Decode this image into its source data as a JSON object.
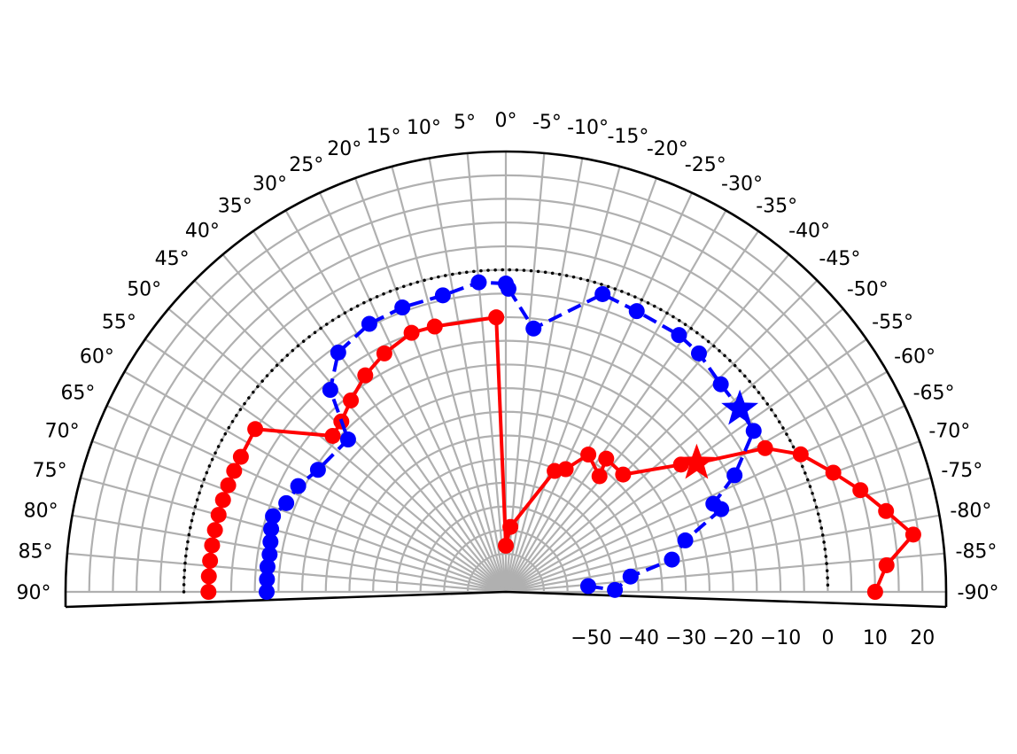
{
  "chart_data": {
    "type": "line",
    "subtype": "polar-half",
    "angle_ticks": [
      "90°",
      "85°",
      "80°",
      "75°",
      "70°",
      "65°",
      "60°",
      "55°",
      "50°",
      "45°",
      "40°",
      "35°",
      "30°",
      "25°",
      "20°",
      "15°",
      "10°",
      "5°",
      "0°",
      "-5°",
      "-10°",
      "-15°",
      "-20°",
      "-25°",
      "-30°",
      "-35°",
      "-40°",
      "-45°",
      "-50°",
      "-55°",
      "-60°",
      "-65°",
      "-70°",
      "-75°",
      "-80°",
      "-85°",
      "-90°"
    ],
    "angle_range": [
      -90,
      90
    ],
    "radial_ticks": [
      "−50",
      "−40",
      "−30",
      "−20",
      "−10",
      "0",
      "10",
      "20"
    ],
    "radial_range": [
      -60,
      25
    ],
    "reference_ring": 0,
    "grid": true,
    "series": [
      {
        "color": "#ff0000",
        "linestyle": "solid",
        "marker": "circle",
        "peak_marker": "star",
        "peak_index": 28,
        "points": [
          {
            "angle": 90,
            "r": -5.2
          },
          {
            "angle": 87,
            "r": -5.2
          },
          {
            "angle": 84,
            "r": -5.2
          },
          {
            "angle": 81,
            "r": -5.2
          },
          {
            "angle": 78,
            "r": -5.2
          },
          {
            "angle": 75,
            "r": -5.2
          },
          {
            "angle": 72,
            "r": -5.2
          },
          {
            "angle": 69,
            "r": -5.2
          },
          {
            "angle": 66,
            "r": -5.2
          },
          {
            "angle": 63,
            "r": -5.2
          },
          {
            "angle": 57,
            "r": -4.9
          },
          {
            "angle": 48,
            "r": -18.8
          },
          {
            "angle": 44,
            "r": -18.0
          },
          {
            "angle": 39,
            "r": -16.0
          },
          {
            "angle": 33,
            "r": -13.5
          },
          {
            "angle": 27,
            "r": -11.5
          },
          {
            "angle": 20,
            "r": -9.8
          },
          {
            "angle": 15,
            "r": -10.0
          },
          {
            "angle": 2,
            "r": -10.0
          },
          {
            "angle": 0,
            "r": -58.3
          },
          {
            "angle": -4,
            "r": -54.3
          },
          {
            "angle": -22,
            "r": -40.5
          },
          {
            "angle": -26,
            "r": -39.2
          },
          {
            "angle": -31,
            "r": -34.2
          },
          {
            "angle": -39,
            "r": -36.6
          },
          {
            "angle": -37,
            "r": -32.8
          },
          {
            "angle": -45,
            "r": -33.0
          },
          {
            "angle": -54,
            "r": -22.3
          },
          {
            "angle": -56,
            "r": -19.4
          },
          {
            "angle": -61,
            "r": -5.4
          },
          {
            "angle": -65,
            "r": 0.7
          },
          {
            "angle": -70,
            "r": 5.6
          },
          {
            "angle": -74,
            "r": 9.9
          },
          {
            "angle": -78,
            "r": 14.1
          },
          {
            "angle": -82,
            "r": 18.9
          },
          {
            "angle": -86,
            "r": 12.6
          },
          {
            "angle": -90,
            "r": 10.0
          }
        ]
      },
      {
        "color": "#0000ff",
        "linestyle": "dashed",
        "marker": "circle",
        "peak_marker": "star",
        "peak_index": 25,
        "points": [
          {
            "angle": 90,
            "r": -17.5
          },
          {
            "angle": 87,
            "r": -17.5
          },
          {
            "angle": 84,
            "r": -17.4
          },
          {
            "angle": 81,
            "r": -17.5
          },
          {
            "angle": 78,
            "r": -17.2
          },
          {
            "angle": 75,
            "r": -16.7
          },
          {
            "angle": 72,
            "r": -16.3
          },
          {
            "angle": 68,
            "r": -18.0
          },
          {
            "angle": 63,
            "r": -18.8
          },
          {
            "angle": 57,
            "r": -20.7
          },
          {
            "angle": 46,
            "r": -21.7
          },
          {
            "angle": 41,
            "r": -11.5
          },
          {
            "angle": 35,
            "r": -6.3
          },
          {
            "angle": 27,
            "r": -4.5
          },
          {
            "angle": 20,
            "r": -4.1
          },
          {
            "angle": 12,
            "r": -4.0
          },
          {
            "angle": 5,
            "r": -2.4
          },
          {
            "angle": 0,
            "r": -2.9
          },
          {
            "angle": -0.5,
            "r": -4.0
          },
          {
            "angle": -6,
            "r": -12.1
          },
          {
            "angle": -18,
            "r": -1.9
          },
          {
            "angle": -25,
            "r": -2.6
          },
          {
            "angle": -34,
            "r": -2.6
          },
          {
            "angle": -39,
            "r": -3.2
          },
          {
            "angle": -46,
            "r": -4.9
          },
          {
            "angle": -52,
            "r": -5.3
          },
          {
            "angle": -57,
            "r": -5.6
          },
          {
            "angle": -63,
            "r": -13.8
          },
          {
            "angle": -67,
            "r": -20.4
          },
          {
            "angle": -69,
            "r": -19.3
          },
          {
            "angle": -74,
            "r": -28.6
          },
          {
            "angle": -79,
            "r": -32.3
          },
          {
            "angle": -83,
            "r": -41.5
          },
          {
            "angle": -89,
            "r": -45.0
          },
          {
            "angle": -86,
            "r": -50.6
          }
        ]
      }
    ]
  }
}
